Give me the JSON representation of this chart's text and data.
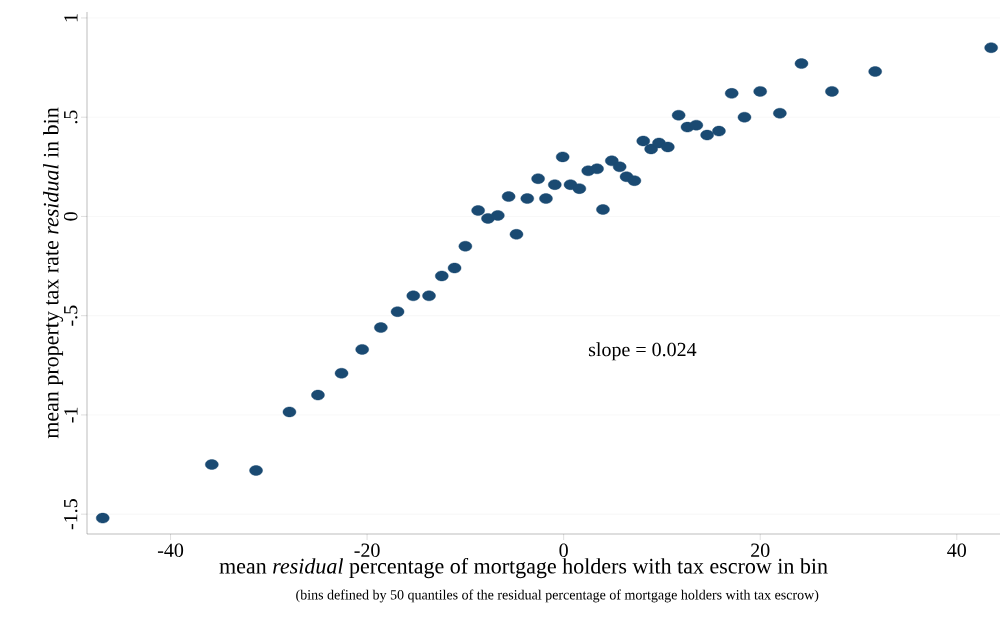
{
  "chart_data": {
    "type": "scatter",
    "xlabel": "mean *residual* percentage of mortgage holders with tax escrow in bin",
    "ylabel": "mean property tax rate *residual* in bin",
    "annotations": [
      "slope = 0.024",
      "(bins defined by 50 quantiles of the residual percentage of mortgage holders with tax escrow)"
    ],
    "x": [
      -46.9,
      -35.8,
      -31.3,
      -27.9,
      -25.0,
      -22.6,
      -20.5,
      -18.6,
      -16.9,
      -15.3,
      -13.7,
      -12.4,
      -11.1,
      -10.0,
      -8.7,
      -7.7,
      -6.7,
      -5.6,
      -4.8,
      -3.7,
      -2.6,
      -1.8,
      -0.9,
      -0.1,
      0.7,
      1.6,
      2.5,
      3.4,
      4.0,
      4.9,
      5.7,
      6.4,
      7.2,
      8.1,
      8.9,
      9.7,
      10.6,
      11.7,
      12.6,
      13.5,
      14.6,
      15.8,
      17.1,
      18.4,
      20.0,
      22.0,
      24.2,
      27.3,
      31.7,
      43.5
    ],
    "values": [
      -1.52,
      -1.25,
      -1.28,
      -0.985,
      -0.9,
      -0.79,
      -0.67,
      -0.56,
      -0.48,
      -0.4,
      -0.4,
      -0.3,
      -0.26,
      -0.15,
      0.03,
      -0.01,
      0.005,
      0.1,
      -0.09,
      0.09,
      0.19,
      0.09,
      0.16,
      0.3,
      0.16,
      0.14,
      0.23,
      0.24,
      0.035,
      0.28,
      0.25,
      0.2,
      0.18,
      0.38,
      0.34,
      0.37,
      0.35,
      0.51,
      0.45,
      0.46,
      0.41,
      0.43,
      0.62,
      0.5,
      0.63,
      0.52,
      0.77,
      0.63,
      0.73,
      0.85
    ],
    "color": "#1a4a72",
    "marker": "circle",
    "grid": "y",
    "xlim": [
      -48.5,
      44.4
    ],
    "ylim": [
      -1.6,
      1.03
    ],
    "xticks": [
      -40,
      -20,
      0,
      20,
      40
    ],
    "yticks": [
      {
        "value": -1.5,
        "label": "-1.5"
      },
      {
        "value": -1,
        "label": "-1"
      },
      {
        "value": -0.5,
        "label": "-.5"
      },
      {
        "value": 0,
        "label": "0"
      },
      {
        "value": 0.5,
        "label": ".5"
      },
      {
        "value": 1,
        "label": "1"
      }
    ]
  }
}
